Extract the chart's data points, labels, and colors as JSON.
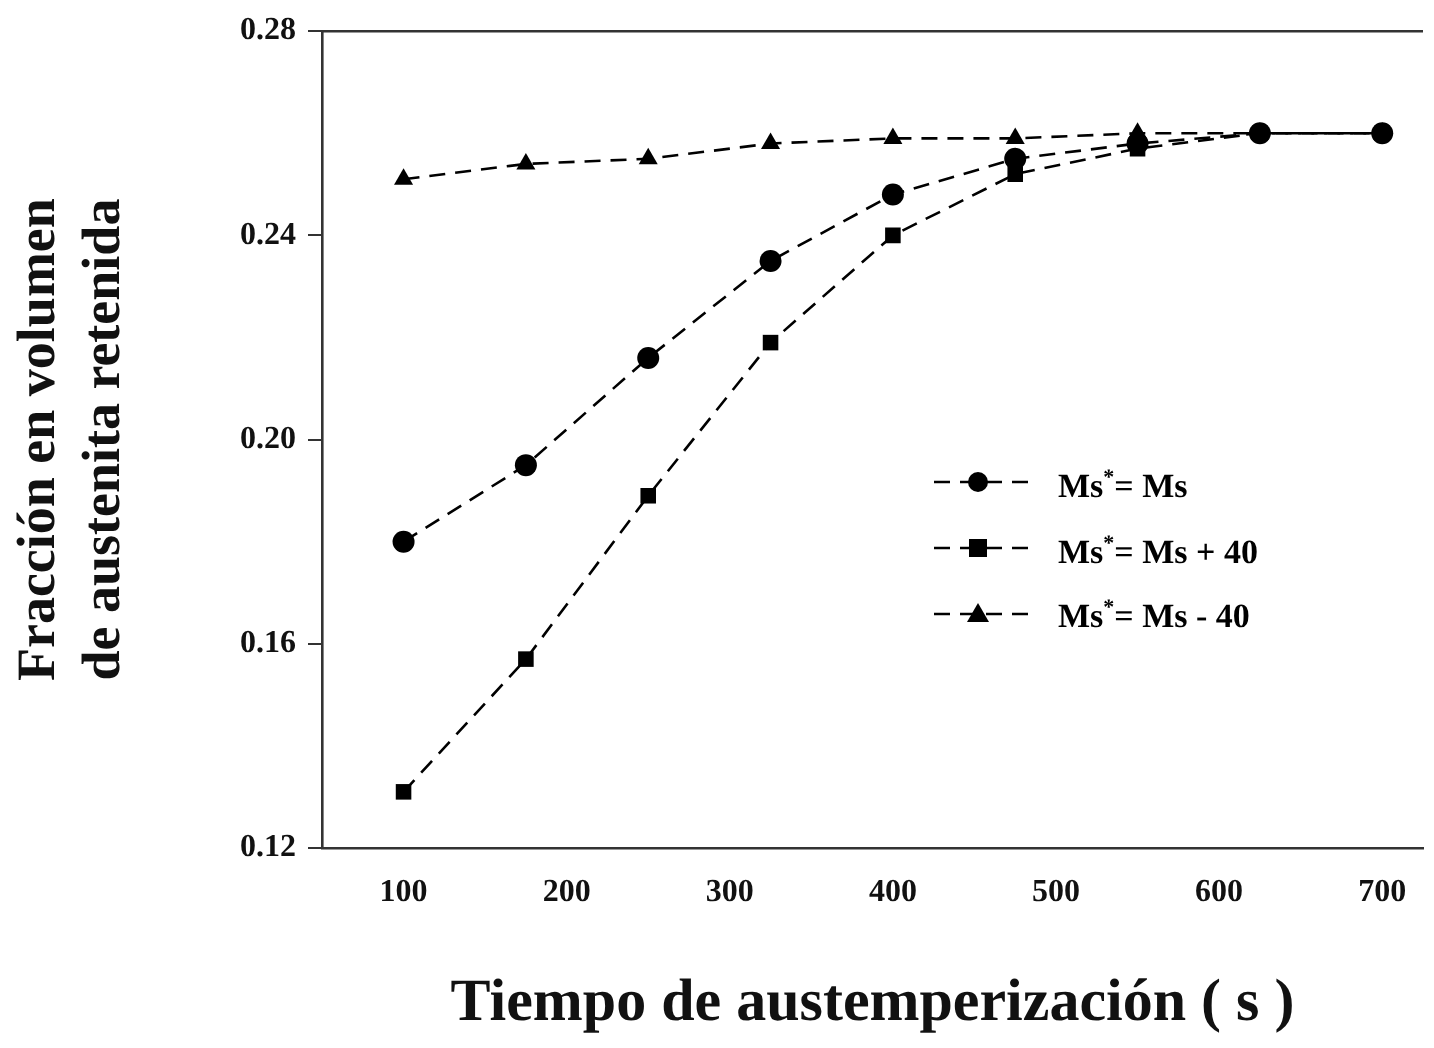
{
  "chart_data": {
    "type": "line",
    "xlabel": "Tiempo de austemperización ( s )",
    "ylabel": "Fracción en volumen\nde austenita retenida",
    "x": [
      100,
      175,
      250,
      325,
      400,
      475,
      550,
      625,
      700
    ],
    "xlim": [
      50,
      725
    ],
    "xticks": [
      100,
      200,
      300,
      400,
      500,
      600,
      700
    ],
    "ylim": [
      0.12,
      0.28
    ],
    "yticks": [
      0.12,
      0.16,
      {
        "value": 0.2,
        "label": "0.20"
      },
      0.24,
      0.28
    ],
    "grid": false,
    "legend": "right",
    "line_style": "dashed",
    "series": [
      {
        "name": "Ms$^{*}$= Ms",
        "color": "#000000",
        "marker": "circle",
        "values": [
          0.18,
          0.195,
          0.216,
          0.235,
          0.248,
          0.255,
          0.258,
          0.26,
          0.26
        ]
      },
      {
        "name": "Ms$^{*}$= Ms + 40",
        "color": "#000000",
        "marker": "square",
        "values": [
          0.131,
          0.157,
          0.189,
          0.219,
          0.24,
          0.252,
          0.257,
          0.26,
          0.26
        ]
      },
      {
        "name": "Ms$^{*}$= Ms - 40",
        "color": "#000000",
        "marker": "triangle",
        "values": [
          0.251,
          0.254,
          0.255,
          0.258,
          0.259,
          0.259,
          0.26,
          0.26,
          0.26
        ]
      }
    ]
  }
}
